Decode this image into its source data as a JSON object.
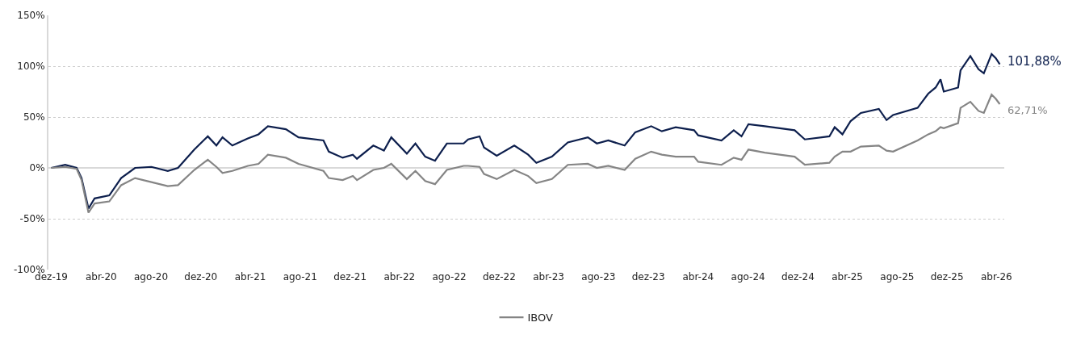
{
  "chart_data": {
    "type": "line",
    "x": [
      "2019-12-01",
      "2020-01-04",
      "2020-02-01",
      "2020-02-13",
      "2020-03-01",
      "2020-03-16",
      "2020-04-21",
      "2020-05-20",
      "2020-06-23",
      "2020-08-02",
      "2020-09-11",
      "2020-10-06",
      "2020-11-15",
      "2020-12-18",
      "2021-01-08",
      "2021-01-23",
      "2021-02-16",
      "2021-03-26",
      "2021-04-21",
      "2021-05-14",
      "2021-06-27",
      "2021-07-28",
      "2021-09-27",
      "2021-10-10",
      "2021-11-13",
      "2021-12-08",
      "2021-12-18",
      "2022-01-27",
      "2022-02-22",
      "2022-03-12",
      "2022-04-19",
      "2022-05-10",
      "2022-06-03",
      "2022-06-27",
      "2022-07-26",
      "2022-09-05",
      "2022-09-16",
      "2022-10-14",
      "2022-10-25",
      "2022-11-25",
      "2023-01-07",
      "2023-02-10",
      "2023-03-02",
      "2023-04-09",
      "2023-05-18",
      "2023-07-06",
      "2023-07-28",
      "2023-08-25",
      "2023-10-04",
      "2023-10-30",
      "2023-12-08",
      "2024-01-03",
      "2024-02-06",
      "2024-03-22",
      "2024-04-01",
      "2024-05-28",
      "2024-06-27",
      "2024-07-16",
      "2024-08-02",
      "2024-09-11",
      "2024-11-23",
      "2024-12-18",
      "2025-02-16",
      "2025-03-01",
      "2025-03-20",
      "2025-04-09",
      "2025-05-04",
      "2025-06-17",
      "2025-07-06",
      "2025-07-22",
      "2025-09-20",
      "2025-10-16",
      "2025-11-03",
      "2025-11-15",
      "2025-11-23",
      "2025-12-28",
      "2026-01-03",
      "2026-01-27",
      "2026-02-16",
      "2026-03-01",
      "2026-03-20",
      "2026-03-30",
      "2026-04-09"
    ],
    "series": [
      {
        "color": "#0d1f4d",
        "values": [
          0,
          3,
          0,
          -10,
          -40,
          -30,
          -27,
          -10,
          0,
          1,
          -3,
          0,
          18,
          31,
          22,
          30,
          22,
          29,
          33,
          41,
          38,
          30,
          27,
          16,
          10,
          13,
          9,
          22,
          17,
          30,
          14,
          24,
          11,
          7,
          24,
          24,
          28,
          31,
          20,
          12,
          22,
          13,
          5,
          11,
          25,
          30,
          24,
          27,
          22,
          35,
          41,
          36,
          40,
          37,
          32,
          27,
          37,
          31,
          43,
          41,
          37,
          28,
          31,
          40,
          33,
          46,
          54,
          58,
          47,
          52,
          59,
          73,
          79,
          87,
          75,
          79,
          96,
          110,
          97,
          93,
          112,
          108,
          101.88
        ]
      },
      {
        "name": "IBOV",
        "color": "#858585",
        "values": [
          0,
          1,
          -1,
          -12,
          -44,
          -35,
          -33,
          -17,
          -10,
          -14,
          -18,
          -17,
          -2,
          8,
          1,
          -5,
          -3,
          2,
          4,
          13,
          10,
          4,
          -3,
          -10,
          -12,
          -8,
          -12,
          -2,
          0,
          4,
          -11,
          -3,
          -13,
          -16,
          -2,
          2,
          2,
          1,
          -6,
          -11,
          -2,
          -8,
          -15,
          -11,
          3,
          4,
          0,
          2,
          -2,
          9,
          16,
          13,
          11,
          11,
          6,
          3,
          10,
          8,
          18,
          15,
          11,
          3,
          5,
          11,
          16,
          16,
          21,
          22,
          17,
          16,
          27,
          33,
          36,
          40,
          39,
          44,
          59,
          65,
          56,
          54,
          72,
          68,
          62.71
        ]
      }
    ],
    "xlim": [
      "2019-11-24",
      "2026-04-20"
    ],
    "xticks": [
      {
        "value": "2019-12-01",
        "label": "dez-19"
      },
      {
        "value": "2020-04-01",
        "label": "abr-20"
      },
      {
        "value": "2020-08-01",
        "label": "ago-20"
      },
      {
        "value": "2020-12-01",
        "label": "dez-20"
      },
      {
        "value": "2021-04-01",
        "label": "abr-21"
      },
      {
        "value": "2021-08-01",
        "label": "ago-21"
      },
      {
        "value": "2021-12-01",
        "label": "dez-21"
      },
      {
        "value": "2022-04-01",
        "label": "abr-22"
      },
      {
        "value": "2022-08-01",
        "label": "ago-22"
      },
      {
        "value": "2022-12-01",
        "label": "dez-22"
      },
      {
        "value": "2023-04-01",
        "label": "abr-23"
      },
      {
        "value": "2023-08-01",
        "label": "ago-23"
      },
      {
        "value": "2023-12-01",
        "label": "dez-23"
      },
      {
        "value": "2024-04-01",
        "label": "abr-24"
      },
      {
        "value": "2024-08-01",
        "label": "ago-24"
      },
      {
        "value": "2024-12-01",
        "label": "dez-24"
      },
      {
        "value": "2025-04-01",
        "label": "abr-25"
      },
      {
        "value": "2025-08-01",
        "label": "ago-25"
      },
      {
        "value": "2025-12-01",
        "label": "dez-25"
      },
      {
        "value": "2026-04-01",
        "label": "abr-26"
      }
    ],
    "ylim": [
      -100,
      150
    ],
    "yticks": [
      {
        "value": -100,
        "label": "-100%"
      },
      {
        "value": -50,
        "label": "-50%"
      },
      {
        "value": 0,
        "label": "0%"
      },
      {
        "value": 50,
        "label": "50%"
      },
      {
        "value": 100,
        "label": "100%"
      },
      {
        "value": 150,
        "label": "150%"
      }
    ],
    "grid": "y",
    "legend": "bottom",
    "annotations": [
      {
        "text": "101,88%",
        "x": "2026-04-09",
        "y": 101.88
      },
      {
        "text": "62,71%",
        "x": "2026-04-09",
        "y": 62.71
      }
    ]
  }
}
